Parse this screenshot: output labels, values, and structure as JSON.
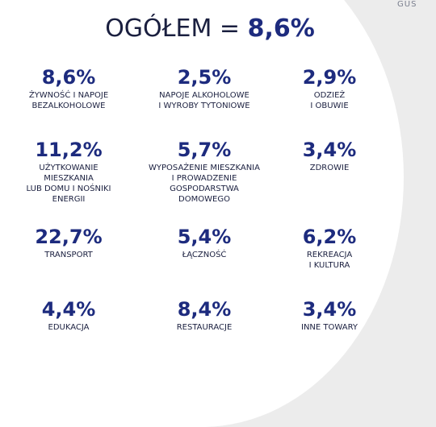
{
  "source": "GUS",
  "total": {
    "label": "OGÓŁEM =",
    "value": "8,6%"
  },
  "items": [
    {
      "value": "8,6%",
      "label": "ŻYWNOŚĆ I NAPOJE\nBEZALKOHOLOWE"
    },
    {
      "value": "2,5%",
      "label": "NAPOJE ALKOHOLOWE\nI WYROBY TYTONIOWE"
    },
    {
      "value": "2,9%",
      "label": "ODZIEŻ\nI OBUWIE"
    },
    {
      "value": "11,2%",
      "label": "UŻYTKOWANIE\nMIESZKANIA\nLUB DOMU I NOŚNIKI\nENERGII"
    },
    {
      "value": "5,7%",
      "label": "WYPOSAŻENIE MIESZKANIA\nI PROWADZENIE\nGOSPODARSTWA\nDOMOWEGO"
    },
    {
      "value": "3,4%",
      "label": "ZDROWIE"
    },
    {
      "value": "22,7%",
      "label": "TRANSPORT"
    },
    {
      "value": "5,4%",
      "label": "ŁĄCZNOŚĆ"
    },
    {
      "value": "6,2%",
      "label": "REKREACJA\nI KULTURA"
    },
    {
      "value": "4,4%",
      "label": "EDUKACJA"
    },
    {
      "value": "8,4%",
      "label": "RESTAURACJE"
    },
    {
      "value": "3,4%",
      "label": "INNE TOWARY"
    }
  ]
}
